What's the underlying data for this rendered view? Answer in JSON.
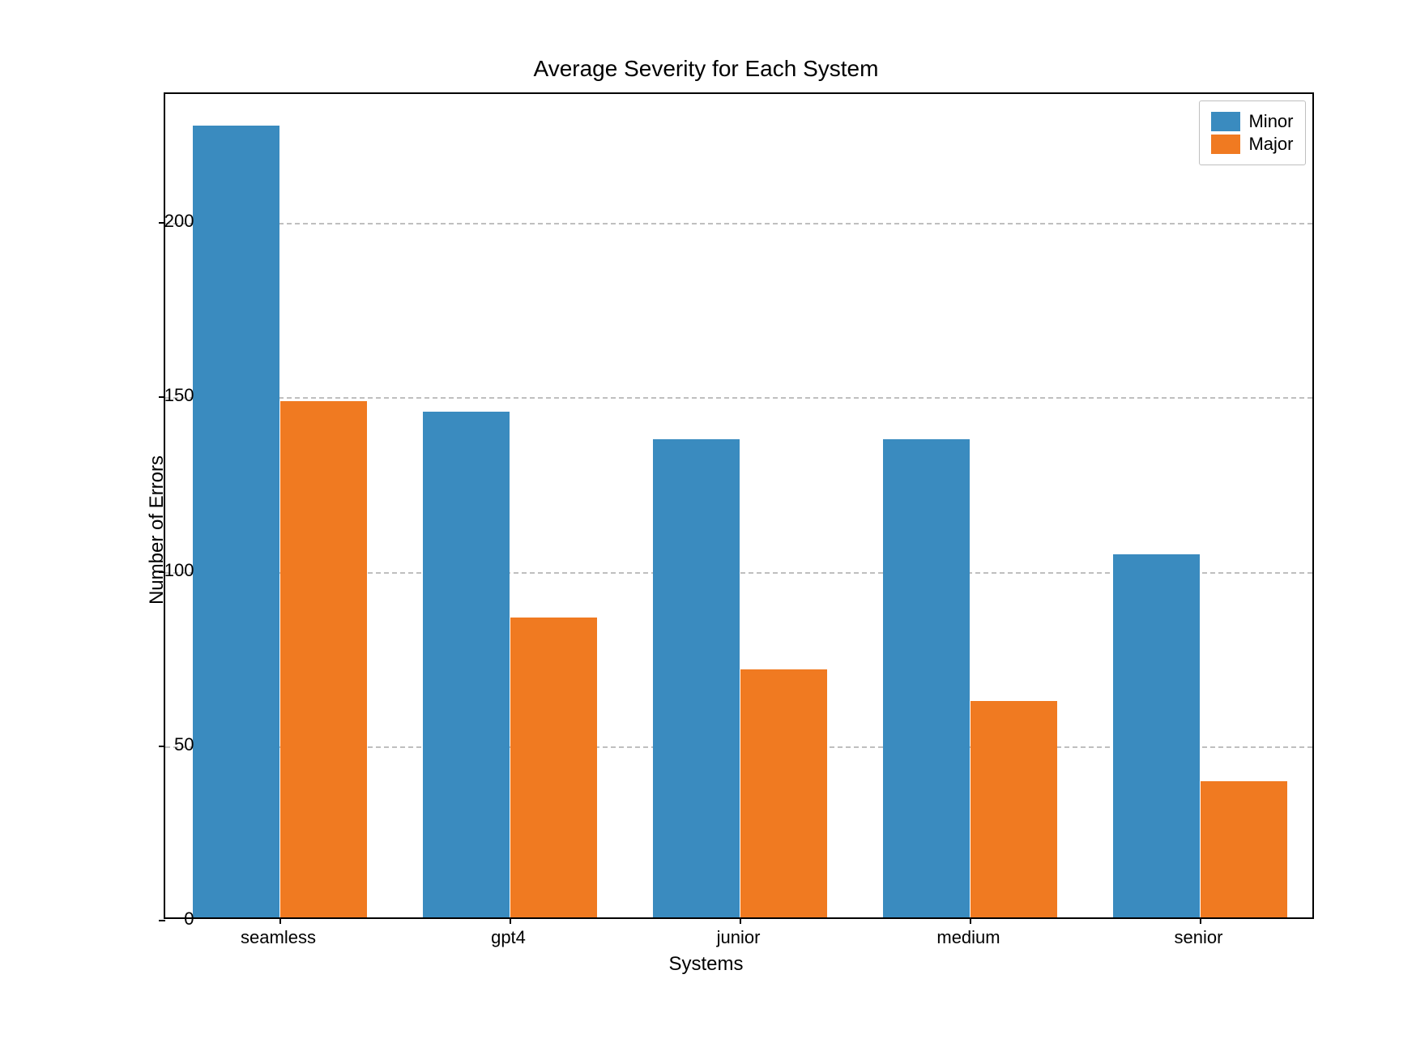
{
  "chart": {
    "type": "bar",
    "title": "Average Severity for Each System",
    "title_fontsize": 28,
    "xlabel": "Systems",
    "ylabel": "Number of Errors",
    "label_fontsize": 24,
    "tick_fontsize": 22,
    "background_color": "#ffffff",
    "grid_color": "#bfbfbf",
    "grid_dash": "dashed",
    "border_color": "#000000",
    "ylim": [
      0,
      237
    ],
    "yticks": [
      0,
      50,
      100,
      150,
      200
    ],
    "categories": [
      "seamless",
      "gpt4",
      "junior",
      "medium",
      "senior"
    ],
    "series": [
      {
        "name": "Minor",
        "color": "#3a8bbf",
        "values": [
          227,
          145,
          137,
          137,
          104
        ]
      },
      {
        "name": "Major",
        "color": "#f07a21",
        "values": [
          148,
          86,
          71,
          62,
          39
        ]
      }
    ],
    "bar_width": 0.38,
    "legend_position": "upper-right",
    "legend_fontsize": 22
  }
}
